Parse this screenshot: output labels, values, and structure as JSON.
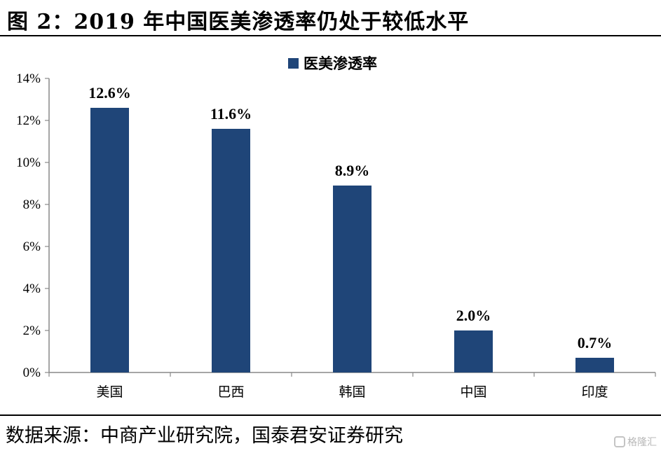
{
  "figure": {
    "title": "图 2：2019 年中国医美渗透率仍处于较低水平",
    "source": "数据来源：中商产业研究院，国泰君安证券研究",
    "watermark": "格隆汇"
  },
  "colors": {
    "bar": "#1f4578",
    "axis": "#888888"
  },
  "chart_data": {
    "type": "bar",
    "categories": [
      "美国",
      "巴西",
      "韩国",
      "中国",
      "印度"
    ],
    "series": [
      {
        "name": "医美渗透率",
        "values": [
          12.6,
          11.6,
          8.9,
          2.0,
          0.7
        ]
      }
    ],
    "data_labels": [
      "12.6%",
      "11.6%",
      "8.9%",
      "2.0%",
      "0.7%"
    ],
    "ylim": [
      0,
      14
    ],
    "yticks": [
      "0%",
      "2%",
      "4%",
      "6%",
      "8%",
      "10%",
      "12%",
      "14%"
    ],
    "legend_position": "top",
    "grid": false
  }
}
